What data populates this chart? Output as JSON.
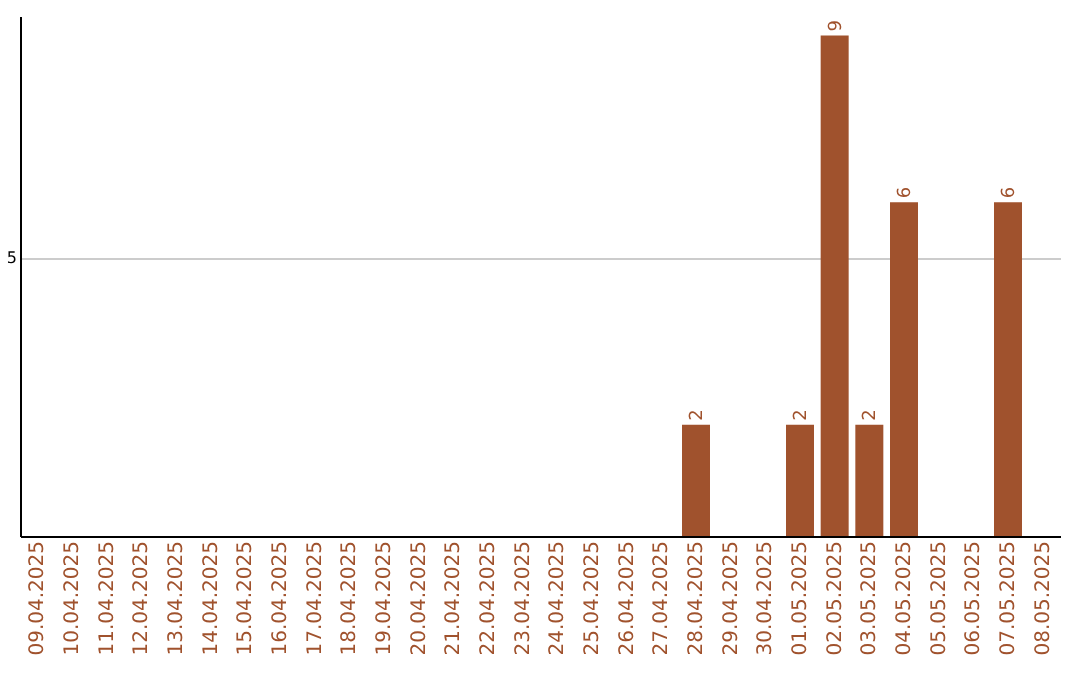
{
  "chart_data": {
    "type": "bar",
    "categories": [
      "09.04.2025",
      "10.04.2025",
      "11.04.2025",
      "12.04.2025",
      "13.04.2025",
      "14.04.2025",
      "15.04.2025",
      "16.04.2025",
      "17.04.2025",
      "18.04.2025",
      "19.04.2025",
      "20.04.2025",
      "21.04.2025",
      "22.04.2025",
      "23.04.2025",
      "24.04.2025",
      "25.04.2025",
      "26.04.2025",
      "27.04.2025",
      "28.04.2025",
      "29.04.2025",
      "30.04.2025",
      "01.05.2025",
      "02.05.2025",
      "03.05.2025",
      "04.05.2025",
      "05.05.2025",
      "06.05.2025",
      "07.05.2025",
      "08.05.2025"
    ],
    "values": [
      null,
      null,
      null,
      null,
      null,
      null,
      null,
      null,
      null,
      null,
      null,
      null,
      null,
      null,
      null,
      null,
      null,
      null,
      null,
      2,
      null,
      null,
      2,
      9,
      2,
      6,
      null,
      null,
      6,
      null
    ],
    "data_labels": true,
    "color": "#a0522d",
    "ylim": [
      0,
      9.35
    ],
    "yticks": [
      5
    ],
    "grid": "y"
  }
}
